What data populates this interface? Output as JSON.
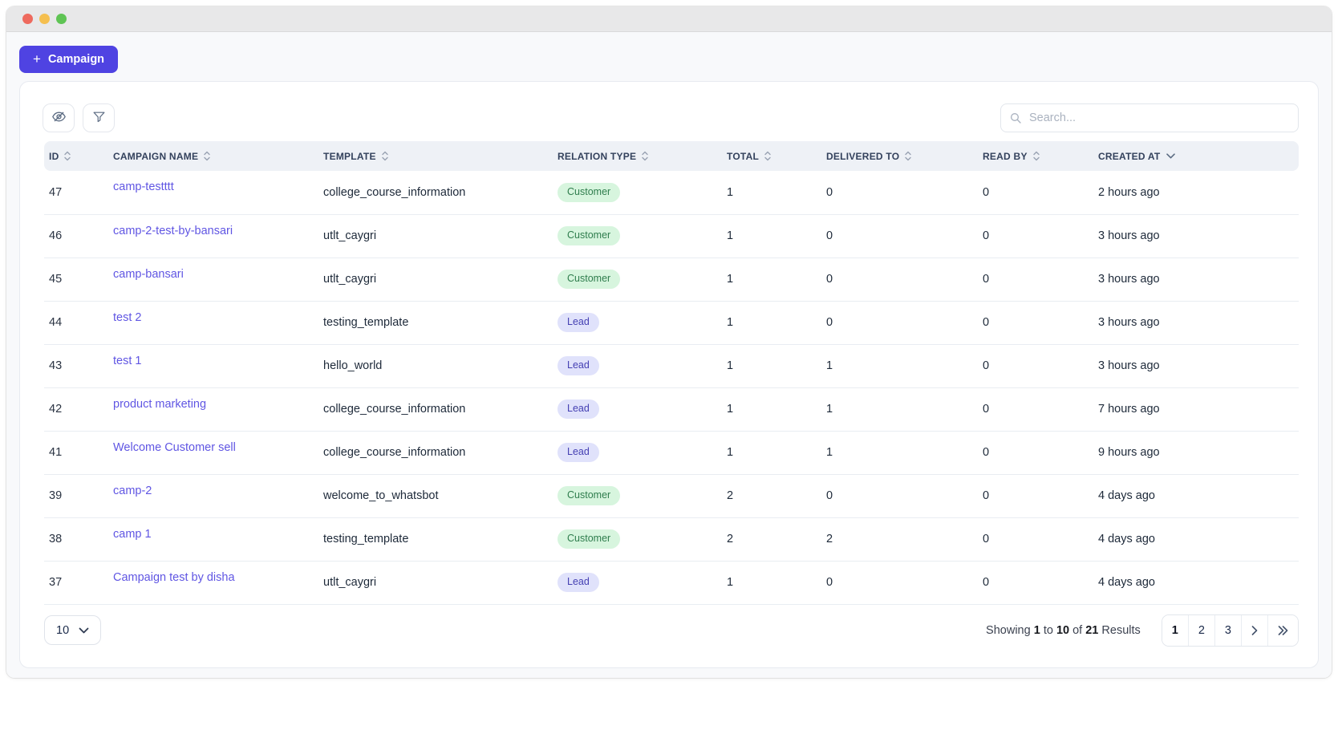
{
  "window": {
    "traffic_lights": [
      {
        "name": "close-button",
        "color": "#ee6a5e"
      },
      {
        "name": "minimize-button",
        "color": "#f5bf4f"
      },
      {
        "name": "zoom-button",
        "color": "#5fc454"
      }
    ]
  },
  "header": {
    "new_campaign_button": {
      "plus": "+",
      "label": "Campaign"
    }
  },
  "toolbar": {
    "hide_columns_icon": "eye-off-icon",
    "filter_icon": "funnel-icon",
    "search": {
      "icon": "magnifier-icon",
      "placeholder": "Search...",
      "value": ""
    }
  },
  "table": {
    "columns": [
      {
        "id": "id",
        "label": "ID",
        "sort": "toggle"
      },
      {
        "id": "campaign-name",
        "label": "CAMPAIGN NAME",
        "sort": "toggle"
      },
      {
        "id": "template",
        "label": "TEMPLATE",
        "sort": "toggle"
      },
      {
        "id": "relation-type",
        "label": "RELATION TYPE",
        "sort": "toggle"
      },
      {
        "id": "total",
        "label": "TOTAL",
        "sort": "toggle"
      },
      {
        "id": "delivered-to",
        "label": "DELIVERED TO",
        "sort": "toggle"
      },
      {
        "id": "read-by",
        "label": "READ BY",
        "sort": "toggle"
      },
      {
        "id": "created-at",
        "label": "CREATED AT",
        "sort": "desc"
      }
    ],
    "rows": [
      {
        "id": "47",
        "campaign_name": "camp-testttt",
        "template": "college_course_information",
        "relation_type": "Customer",
        "total": "1",
        "delivered_to": "0",
        "read_by": "0",
        "created_at": "2 hours ago"
      },
      {
        "id": "46",
        "campaign_name": "camp-2-test-by-bansari",
        "template": "utlt_caygri",
        "relation_type": "Customer",
        "total": "1",
        "delivered_to": "0",
        "read_by": "0",
        "created_at": "3 hours ago"
      },
      {
        "id": "45",
        "campaign_name": "camp-bansari",
        "template": "utlt_caygri",
        "relation_type": "Customer",
        "total": "1",
        "delivered_to": "0",
        "read_by": "0",
        "created_at": "3 hours ago"
      },
      {
        "id": "44",
        "campaign_name": "test 2",
        "template": "testing_template",
        "relation_type": "Lead",
        "total": "1",
        "delivered_to": "0",
        "read_by": "0",
        "created_at": "3 hours ago"
      },
      {
        "id": "43",
        "campaign_name": "test 1",
        "template": "hello_world",
        "relation_type": "Lead",
        "total": "1",
        "delivered_to": "1",
        "read_by": "0",
        "created_at": "3 hours ago"
      },
      {
        "id": "42",
        "campaign_name": "product marketing",
        "template": "college_course_information",
        "relation_type": "Lead",
        "total": "1",
        "delivered_to": "1",
        "read_by": "0",
        "created_at": "7 hours ago"
      },
      {
        "id": "41",
        "campaign_name": "Welcome Customer sell",
        "template": "college_course_information",
        "relation_type": "Lead",
        "total": "1",
        "delivered_to": "1",
        "read_by": "0",
        "created_at": "9 hours ago"
      },
      {
        "id": "39",
        "campaign_name": "camp-2",
        "template": "welcome_to_whatsbot",
        "relation_type": "Customer",
        "total": "2",
        "delivered_to": "0",
        "read_by": "0",
        "created_at": "4 days ago"
      },
      {
        "id": "38",
        "campaign_name": "camp 1",
        "template": "testing_template",
        "relation_type": "Customer",
        "total": "2",
        "delivered_to": "2",
        "read_by": "0",
        "created_at": "4 days ago"
      },
      {
        "id": "37",
        "campaign_name": "Campaign test by disha",
        "template": "utlt_caygri",
        "relation_type": "Lead",
        "total": "1",
        "delivered_to": "0",
        "read_by": "0",
        "created_at": "4 days ago"
      }
    ],
    "relation_type_styles": {
      "Customer": {
        "bg": "#d7f5de",
        "text": "#2f7d4d"
      },
      "Lead": {
        "bg": "#e0e2fb",
        "text": "#4540b3"
      }
    }
  },
  "footer": {
    "page_size": {
      "value": "10",
      "icon": "chevron-down-icon"
    },
    "summary": {
      "prefix": "Showing",
      "from": "1",
      "mid": "to",
      "to": "10",
      "of_word": "of",
      "total": "21",
      "suffix": "Results"
    },
    "pagination": {
      "pages": [
        "1",
        "2",
        "3"
      ],
      "active": "1",
      "next_icon": "chevron-right-icon",
      "last_icon": "double-chevron-right-icon"
    }
  },
  "colors": {
    "accent": "#4f43e2",
    "link": "#6056e3",
    "header_bg": "#eef1f6"
  }
}
